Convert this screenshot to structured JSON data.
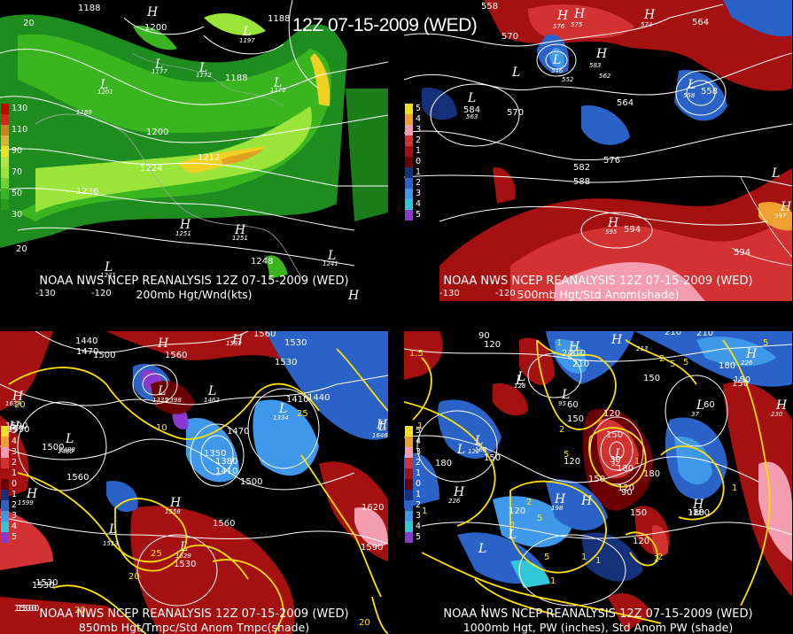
{
  "header": {
    "valid_time": "12Z 07-15-2009 (WED)"
  },
  "colors": {
    "wind_light": "#9be53a",
    "wind_mid": "#3ab520",
    "wind_dark": "#1e8c1e",
    "wind_yellow": "#f0d020",
    "wind_orange": "#e0a020",
    "anom_pos1": "#6b0000",
    "anom_pos2": "#a51010",
    "anom_pos3": "#d23232",
    "anom_pos4": "#f49cb0",
    "anom_neg1": "#17307a",
    "anom_neg2": "#2a62c8",
    "anom_neg3": "#3f98ea",
    "anom_neg4": "#8a3ad0",
    "temp_contour": "#ffe000",
    "height_contour": "#ffffff"
  },
  "panels": {
    "p200": {
      "caption_line1": "NOAA NWS NCEP REANALYSIS 12Z 07-15-2009 (WED)",
      "caption_line2": "200mb Hgt/Wnd(kts)",
      "legend": [
        {
          "label": "130",
          "color": "#cc0000"
        },
        {
          "label": "",
          "color": "#e02020"
        },
        {
          "label": "110",
          "color": "#d08020"
        },
        {
          "label": "",
          "color": "#e0b030"
        },
        {
          "label": "90",
          "color": "#f0e020"
        },
        {
          "label": "",
          "color": "#b8e040"
        },
        {
          "label": "70",
          "color": "#9be53a"
        },
        {
          "label": "",
          "color": "#70d030"
        },
        {
          "label": "50",
          "color": "#3ab520"
        },
        {
          "label": "",
          "color": "#2a9a1e"
        },
        {
          "label": "30",
          "color": "#1e8c1e"
        }
      ],
      "contour_labels": [
        "1188",
        "1188",
        "1200",
        "1197",
        "1177",
        "1172",
        "1188",
        "1172",
        "1201",
        "1189",
        "1200",
        "1224",
        "1212",
        "1236",
        "1251",
        "1251",
        "1248",
        "1241",
        "1241",
        "20",
        "20"
      ],
      "highs_lows": [
        "H",
        "L",
        "L",
        "L",
        "L",
        "L",
        "H",
        "H",
        "L",
        "L",
        "H"
      ],
      "lon_labels": [
        "-130",
        "-120"
      ]
    },
    "p500": {
      "caption_line1": "NOAA NWS NCEP REANALYSIS 12Z 07-15-2009 (WED)",
      "caption_line2": "500mb Hgt/Std Anom(shade)",
      "legend": [
        {
          "label": "5",
          "color": "#f0e020"
        },
        {
          "label": "4",
          "color": "#f0a030"
        },
        {
          "label": "3",
          "color": "#f49cb0"
        },
        {
          "label": "2",
          "color": "#d23232"
        },
        {
          "label": "1",
          "color": "#a51010"
        },
        {
          "label": "0",
          "color": "#6b0000"
        },
        {
          "label": "1",
          "color": "#17307a"
        },
        {
          "label": "2",
          "color": "#2a62c8"
        },
        {
          "label": "3",
          "color": "#3f98ea"
        },
        {
          "label": "4",
          "color": "#30c8d8"
        },
        {
          "label": "5",
          "color": "#8a3ad0"
        }
      ],
      "contour_labels": [
        "558",
        "564",
        "570",
        "584",
        "570",
        "552",
        "564",
        "576",
        "558",
        "582",
        "588",
        "594",
        "594"
      ],
      "highs_lows": [
        "H",
        "H",
        "H",
        "H",
        "L",
        "L",
        "L",
        "L",
        "L",
        "H",
        "H"
      ],
      "small_values": [
        "576",
        "575",
        "574",
        "546",
        "583",
        "562",
        "563",
        "558",
        "595",
        "597",
        "563"
      ],
      "lon_labels": [
        "-130",
        "-120"
      ]
    },
    "p850": {
      "caption_line1": "NOAA NWS NCEP REANALYSIS 12Z 07-15-2009 (WED)",
      "caption_line2": "850mb Hgt/Tmpc/Std Anom Tmpc(shade)",
      "legend": [
        {
          "label": "5",
          "color": "#f0e020"
        },
        {
          "label": "4",
          "color": "#f0a030"
        },
        {
          "label": "3",
          "color": "#f49cb0"
        },
        {
          "label": "2",
          "color": "#d23232"
        },
        {
          "label": "1",
          "color": "#a51010"
        },
        {
          "label": "0",
          "color": "#6b0000"
        },
        {
          "label": "1",
          "color": "#17307a"
        },
        {
          "label": "2",
          "color": "#2a62c8"
        },
        {
          "label": "3",
          "color": "#3f98ea"
        },
        {
          "label": "4",
          "color": "#30c8d8"
        },
        {
          "label": "5",
          "color": "#8a3ad0"
        }
      ],
      "contour_labels": [
        "1440",
        "1470",
        "1500",
        "1560",
        "1560",
        "1530",
        "1530",
        "1590",
        "1500",
        "1560",
        "1470",
        "1410",
        "1440",
        "1350",
        "1380",
        "1410",
        "1500",
        "1560",
        "1590",
        "1620",
        "1530",
        "1530",
        "1500",
        "1590",
        "1500",
        "1530"
      ],
      "temp_labels": [
        "10",
        "25",
        "20",
        "20",
        "20",
        "25",
        "20"
      ],
      "highs_lows": [
        "H",
        "H",
        "H",
        "L",
        "L",
        "L",
        "L",
        "L",
        "H",
        "H",
        "L",
        "L",
        "H",
        "H"
      ],
      "small_values": [
        "1532",
        "1633",
        "1646",
        "1335",
        "1398",
        "1334",
        "1462",
        "1488",
        "1599",
        "1558",
        "1513",
        "1529",
        "1480"
      ]
    },
    "p1000": {
      "caption_line1": "NOAA NWS NCEP REANALYSIS 12Z 07-15-2009 (WED)",
      "caption_line2": "1000mb Hgt, PW (inches), Std Anom PW (shade)",
      "legend": [
        {
          "label": "5",
          "color": "#f0e020"
        },
        {
          "label": "4",
          "color": "#f0a030"
        },
        {
          "label": "3",
          "color": "#f49cb0"
        },
        {
          "label": "2",
          "color": "#d23232"
        },
        {
          "label": "1",
          "color": "#a51010"
        },
        {
          "label": "0",
          "color": "#6b0000"
        },
        {
          "label": "1",
          "color": "#17307a"
        },
        {
          "label": "2",
          "color": "#2a62c8"
        },
        {
          "label": "3",
          "color": "#3f98ea"
        },
        {
          "label": "4",
          "color": "#30c8d8"
        },
        {
          "label": "5",
          "color": "#8a3ad0"
        }
      ],
      "contour_labels": [
        "90",
        "210",
        "210",
        "120",
        "150",
        "180",
        "150",
        "150",
        "120",
        "180",
        "150",
        "150",
        "120",
        "120",
        "180",
        "180",
        "150",
        "90",
        "60",
        "210",
        "240",
        "210",
        "150",
        "120",
        "30",
        "180",
        "60",
        "150",
        "120",
        "180"
      ],
      "pw_labels": [
        "1.5",
        "1",
        "2",
        "2",
        "5",
        "5",
        "2",
        "1",
        "5",
        "1",
        "2",
        "5",
        "1",
        "1",
        "2",
        "1",
        "5",
        "1",
        "1",
        "1",
        "2",
        "5",
        "1"
      ],
      "highs_lows": [
        "H",
        "H",
        "L",
        "L",
        "L",
        "L",
        "L",
        "H",
        "H",
        "H",
        "H",
        "L",
        "L",
        "H",
        "L",
        "L",
        "H"
      ],
      "small_values": [
        "213",
        "128",
        "32",
        "37",
        "95",
        "168",
        "122",
        "226",
        "147",
        "226",
        "230",
        "198"
      ]
    }
  }
}
